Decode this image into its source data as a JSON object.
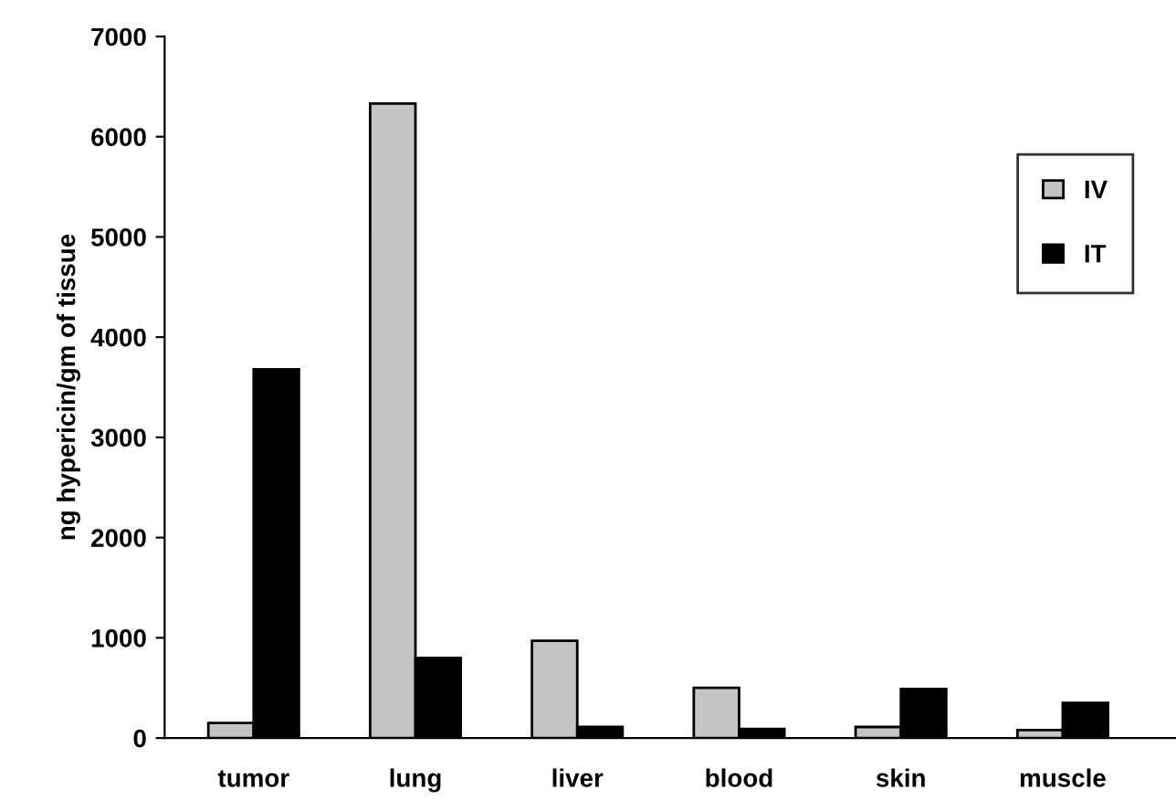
{
  "chart_data": {
    "type": "bar",
    "ylabel": "ng hypericin/gm of tissue",
    "categories": [
      "tumor",
      "lung",
      "liver",
      "blood",
      "skin",
      "muscle"
    ],
    "series": [
      {
        "name": "IV",
        "color": "#c4c4c4",
        "values": [
          150,
          6330,
          970,
          500,
          110,
          80
        ]
      },
      {
        "name": "IT",
        "color": "#000000",
        "values": [
          3680,
          800,
          110,
          90,
          490,
          350
        ]
      }
    ],
    "ylim": [
      0,
      7000
    ],
    "yticks": [
      0,
      1000,
      2000,
      3000,
      4000,
      5000,
      6000,
      7000
    ],
    "grid": false,
    "legend": "top right"
  }
}
